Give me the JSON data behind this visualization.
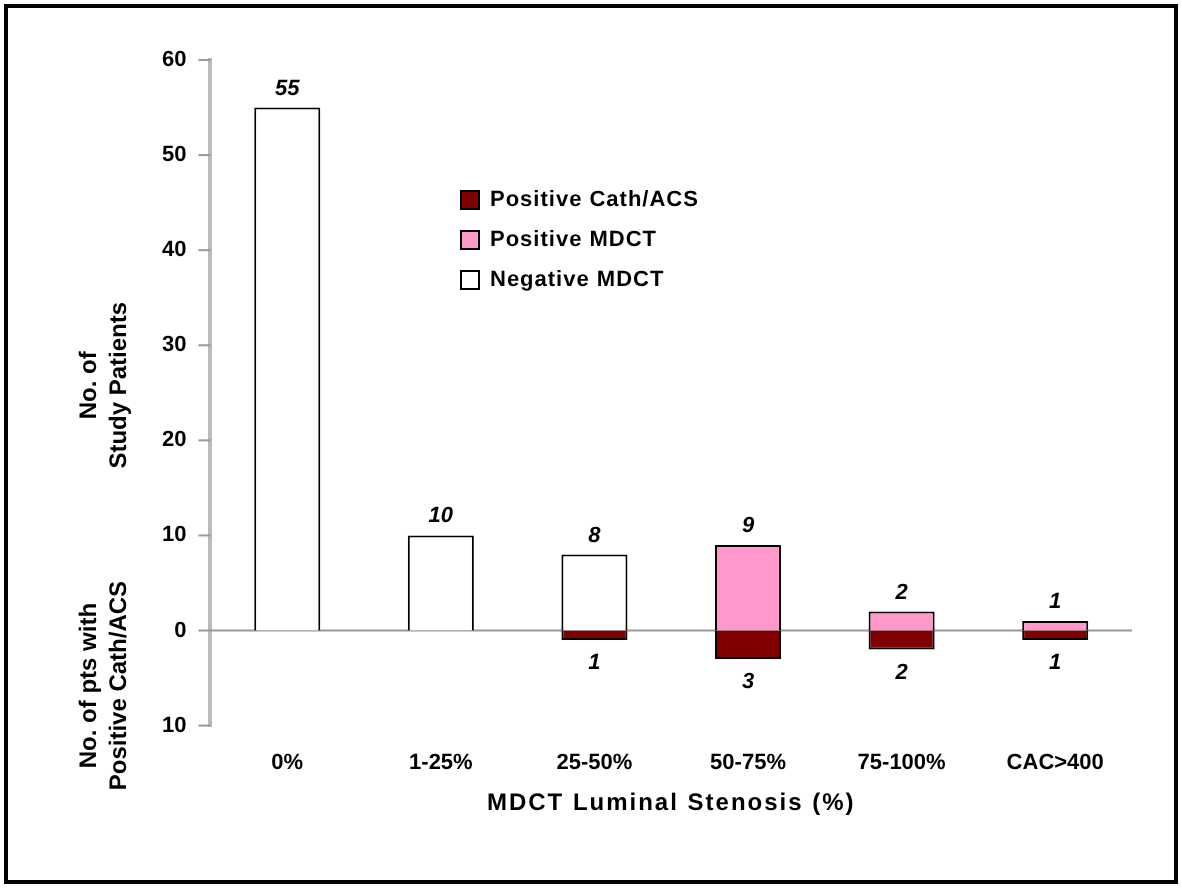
{
  "chart_data": {
    "type": "bar",
    "xlabel": "MDCT Luminal Stenosis (%)",
    "ylabel": "No. of\nStudy Patients",
    "annotations": [
      "No. of pts with\nPositive Cath/ACS"
    ],
    "categories": [
      "0%",
      "1-25%",
      "25-50%",
      "50-75%",
      "75-100%",
      "CAC>400"
    ],
    "ylim": [
      -10,
      60
    ],
    "yticks": [
      {
        "value": -10,
        "label": "10"
      },
      0,
      10,
      20,
      30,
      40,
      50,
      60
    ],
    "legend": "top",
    "series": [
      {
        "name": "Positive Cath/ACS",
        "color": "#800000",
        "values": [
          null,
          null,
          1,
          3,
          2,
          1
        ],
        "base": [
          null,
          null,
          -1,
          -3,
          -2,
          -1
        ],
        "value_labels": [
          null,
          null,
          "1",
          "3",
          "2",
          "1"
        ]
      },
      {
        "name": "Positive MDCT",
        "color": "#ff99cc",
        "values": [
          null,
          null,
          null,
          9,
          2,
          1
        ],
        "value_labels": [
          null,
          null,
          null,
          "9",
          "2",
          "1"
        ]
      },
      {
        "name": "Negative MDCT",
        "color": "#ffffff",
        "values": [
          55,
          10,
          8,
          null,
          null,
          null
        ],
        "value_labels": [
          "55",
          "10",
          "8",
          null,
          null,
          null
        ]
      }
    ]
  }
}
